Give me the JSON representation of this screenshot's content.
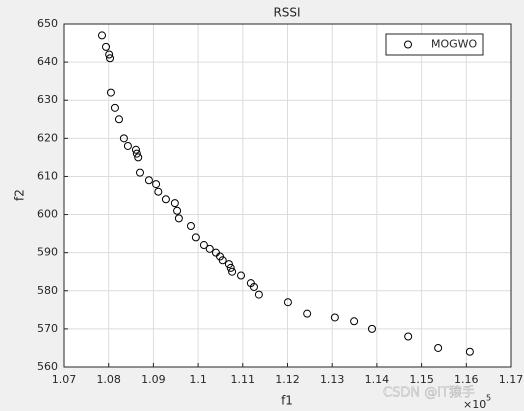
{
  "chart_data": {
    "type": "scatter",
    "title": "RSSI",
    "x_label": "f1",
    "y_label": "f2",
    "x_exponent": {
      "base": "×10",
      "power": "5"
    },
    "watermark": "CSDN @IT猿手",
    "series": [
      {
        "name": "MOGWO",
        "color": "#000000",
        "x": [
          1.0785,
          1.0794,
          1.0801,
          1.0803,
          1.0805,
          1.0814,
          1.0823,
          1.0834,
          1.0843,
          1.0861,
          1.0863,
          1.0866,
          1.087,
          1.089,
          1.0906,
          1.0911,
          1.0928,
          1.0948,
          1.0953,
          1.0957,
          1.0984,
          1.0995,
          1.1013,
          1.1026,
          1.104,
          1.1049,
          1.1055,
          1.1069,
          1.1073,
          1.1076,
          1.1096,
          1.1118,
          1.1125,
          1.1136,
          1.1201,
          1.1244,
          1.1306,
          1.1349,
          1.1389,
          1.147,
          1.1537,
          1.1608
        ],
        "values": [
          647,
          644,
          642,
          641,
          632,
          628,
          625,
          620,
          618,
          617,
          616,
          615,
          611,
          609,
          608,
          606,
          604,
          603,
          601,
          599,
          597,
          594,
          592,
          591,
          590,
          589,
          588,
          587,
          586,
          585,
          584,
          582,
          581,
          579,
          577,
          574,
          573,
          572,
          570,
          568,
          565,
          564
        ]
      }
    ],
    "xlim": [
      1.07,
      1.17
    ],
    "xticks": [
      1.07,
      1.08,
      1.09,
      1.1,
      1.11,
      1.12,
      1.13,
      1.14,
      1.15,
      1.16,
      1.17
    ],
    "ylim": [
      560,
      650
    ],
    "yticks": [
      560,
      570,
      580,
      590,
      600,
      610,
      620,
      630,
      640,
      650
    ],
    "grid": true,
    "legend_position": "top-right"
  }
}
